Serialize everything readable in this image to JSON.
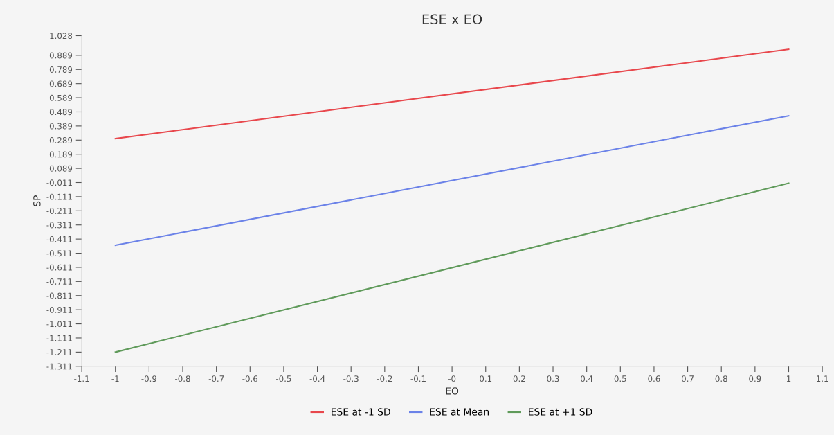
{
  "chart_data": {
    "type": "line",
    "title": "ESE x EO",
    "xlabel": "EO",
    "ylabel": "SP",
    "x": [
      -1,
      1
    ],
    "series": [
      {
        "name": "ESE at -1 SD",
        "color": "#e8474c",
        "values": [
          0.3,
          0.932
        ]
      },
      {
        "name": "ESE at Mean",
        "color": "#6b82e8",
        "values": [
          -0.455,
          0.461
        ]
      },
      {
        "name": "ESE at +1 SD",
        "color": "#5f9a5a",
        "values": [
          -1.211,
          -0.016
        ]
      }
    ],
    "xlim": [
      -1.1,
      1.1
    ],
    "xticks": [
      -1.1,
      {
        "value": -1,
        "label": "-1"
      },
      -0.9,
      -0.8,
      -0.7,
      -0.6,
      -0.5,
      -0.4,
      -0.3,
      -0.2,
      -0.1,
      {
        "value": 0,
        "label": "-0"
      },
      0.1,
      0.2,
      0.3,
      0.4,
      0.5,
      0.6,
      0.7,
      0.8,
      0.9,
      {
        "value": 1,
        "label": "1"
      },
      1.1
    ],
    "ylim": [
      -1.311,
      1.028
    ],
    "yticks": [
      1.028,
      0.889,
      0.789,
      0.689,
      0.589,
      0.489,
      0.389,
      0.289,
      0.189,
      0.089,
      -0.011,
      -0.111,
      -0.211,
      -0.311,
      -0.411,
      -0.511,
      -0.611,
      -0.711,
      -0.811,
      -0.911,
      -1.011,
      -1.111,
      -1.211,
      -1.311
    ],
    "legend": "bottom",
    "grid": false,
    "marker": "none",
    "line_style": "solid"
  }
}
